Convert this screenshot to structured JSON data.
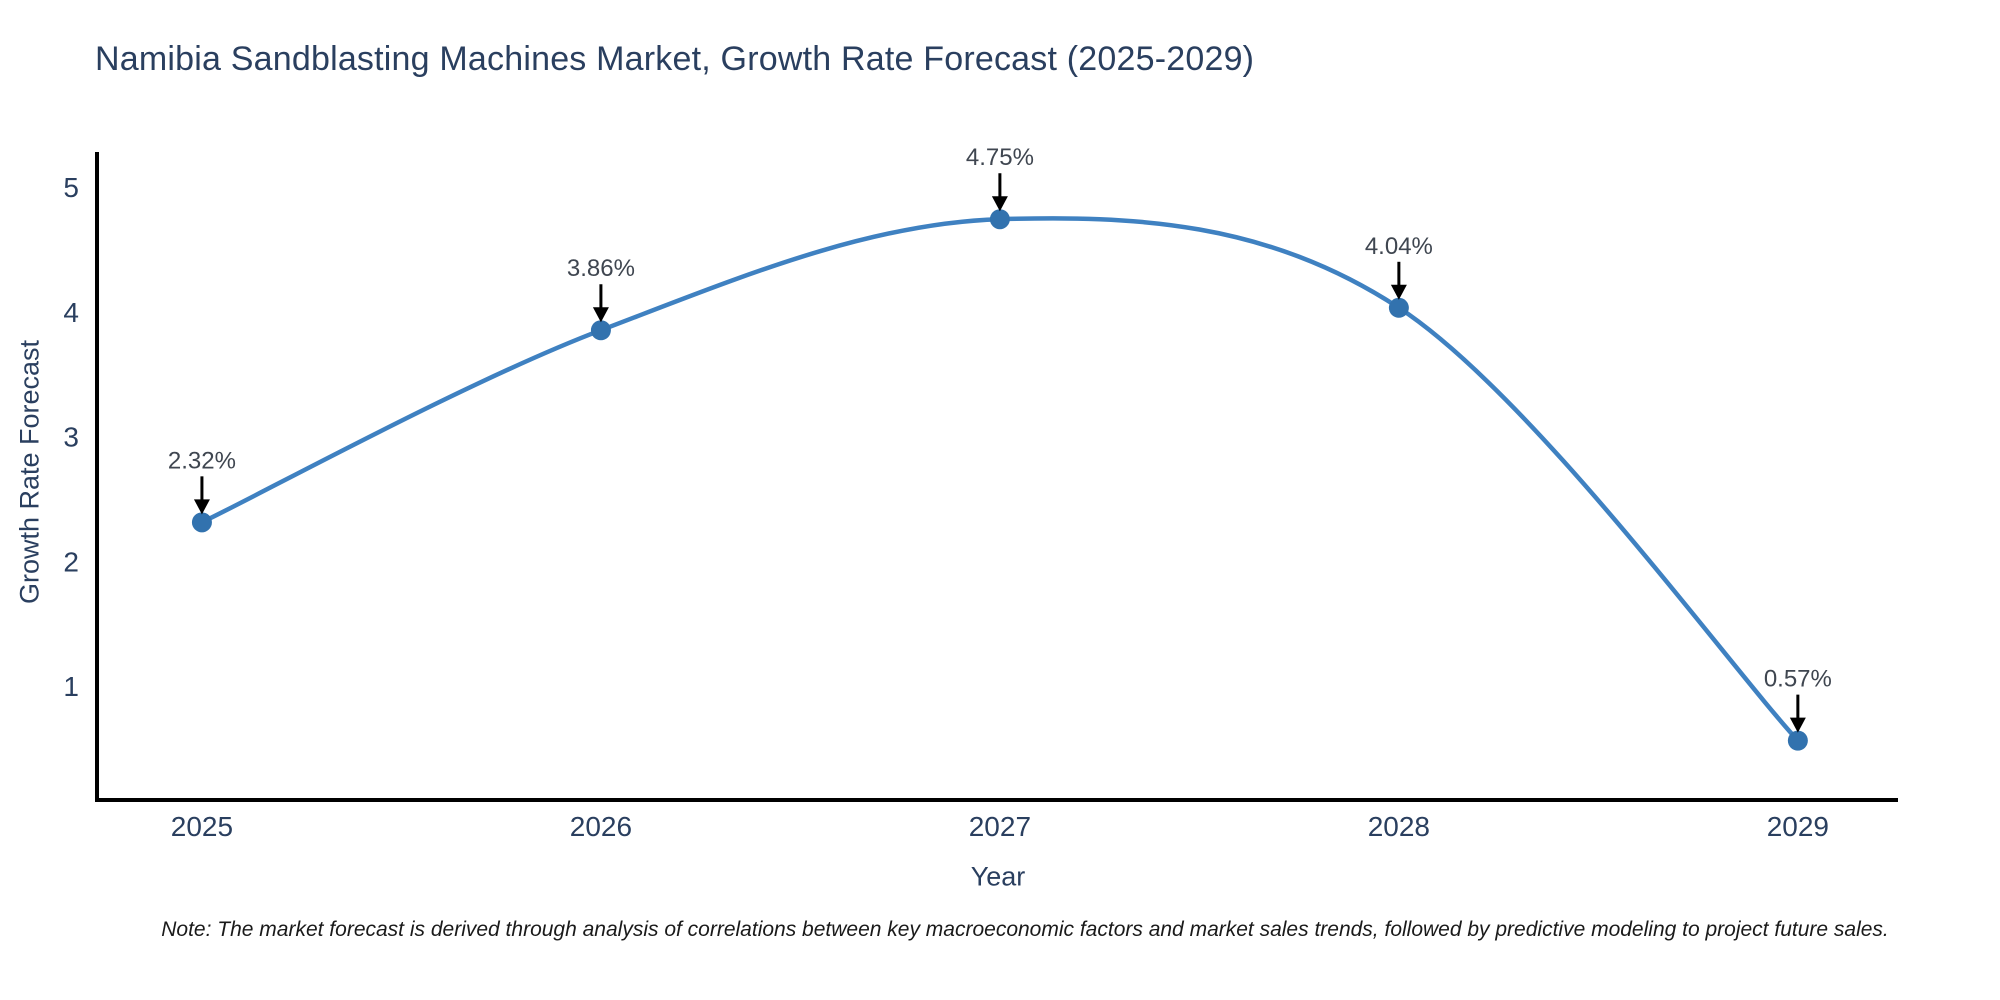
{
  "title": "Namibia Sandblasting Machines Market, Growth Rate Forecast (2025-2029)",
  "note": "Note: The market forecast is derived through analysis of correlations between key macroeconomic factors and market sales trends, followed by predictive modeling to project future sales.",
  "chart_data": {
    "type": "line",
    "x": [
      2025,
      2026,
      2027,
      2028,
      2029
    ],
    "values": [
      2.32,
      3.86,
      4.75,
      4.04,
      0.57
    ],
    "point_labels": [
      "2.32%",
      "3.86%",
      "4.75%",
      "4.04%",
      "0.57%"
    ],
    "categories": [
      "2025",
      "2026",
      "2027",
      "2028",
      "2029"
    ],
    "yticks": [
      1,
      2,
      3,
      4,
      5
    ],
    "title": "Namibia Sandblasting Machines Market, Growth Rate Forecast (2025-2029)",
    "xlabel": "Year",
    "ylabel": "Growth Rate Forecast",
    "xlim": [
      2024.737,
      2029.251
    ],
    "ylim": [
      0.094,
      5.289
    ],
    "line_shape": "spline",
    "grid": false,
    "legend": "none",
    "colors": {
      "line": "#3f81c1",
      "marker": "#3272ae",
      "axis": "#000000",
      "arrow": "#000000",
      "title_text": "#2a3f5f",
      "axis_title_text": "#2a3f5f",
      "tick_text": "#2a3f5f",
      "annotation_text": "#3f4650",
      "note_text": "#1a1a1a",
      "background": "#ffffff"
    }
  }
}
